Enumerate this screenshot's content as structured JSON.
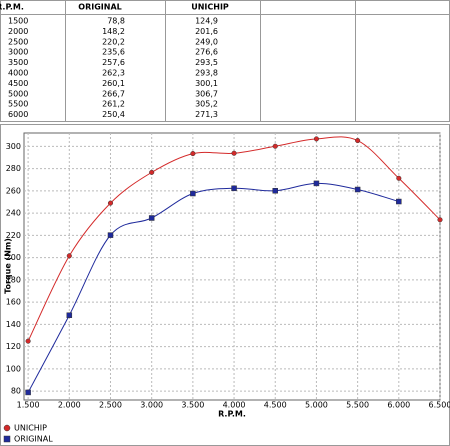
{
  "table": {
    "headers": [
      "R.P.M.",
      "ORIGINAL",
      "UNICHIP"
    ],
    "rows": [
      [
        "1500",
        "78,8",
        "124,9"
      ],
      [
        "2000",
        "148,2",
        "201,6"
      ],
      [
        "2500",
        "220,2",
        "249,0"
      ],
      [
        "3000",
        "235,6",
        "276,6"
      ],
      [
        "3500",
        "257,6",
        "293,5"
      ],
      [
        "4000",
        "262,3",
        "293,8"
      ],
      [
        "4500",
        "260,1",
        "300,1"
      ],
      [
        "5000",
        "266,7",
        "306,7"
      ],
      [
        "5500",
        "261,2",
        "305,2"
      ],
      [
        "6000",
        "250,4",
        "271,3"
      ]
    ]
  },
  "chart_data": {
    "type": "line",
    "x_label": "R.P.M.",
    "y_label": "Torque (Nm)",
    "x": [
      1500,
      2000,
      2500,
      3000,
      3500,
      4000,
      4500,
      5000,
      5500,
      6000,
      6500
    ],
    "series": [
      {
        "name": "UNICHIP",
        "color": "#d42a2a",
        "marker": "circle",
        "values": [
          124.9,
          201.6,
          249.0,
          276.6,
          293.5,
          293.8,
          300.1,
          306.7,
          305.2,
          271.3,
          234
        ]
      },
      {
        "name": "ORIGINAL",
        "color": "#1f2a9c",
        "marker": "square",
        "values": [
          78.8,
          148.2,
          220.2,
          235.6,
          257.6,
          262.3,
          260.1,
          266.7,
          261.2,
          250.4,
          null
        ]
      }
    ],
    "xlim": [
      1450,
      6500
    ],
    "ylim": [
      72,
      312
    ],
    "xticks": [
      {
        "value": 1500,
        "label": "1.500"
      },
      {
        "value": 2000,
        "label": "2.000"
      },
      {
        "value": 2500,
        "label": "2.500"
      },
      {
        "value": 3000,
        "label": "3.000"
      },
      {
        "value": 3500,
        "label": "3.500"
      },
      {
        "value": 4000,
        "label": "4.000"
      },
      {
        "value": 4500,
        "label": "4.500"
      },
      {
        "value": 5000,
        "label": "5.000"
      },
      {
        "value": 5500,
        "label": "5.500"
      },
      {
        "value": 6000,
        "label": "6.000"
      },
      {
        "value": 6500,
        "label": "6.500"
      }
    ],
    "yticks": [
      80,
      100,
      120,
      140,
      160,
      180,
      200,
      220,
      240,
      260,
      280,
      300
    ],
    "grid": true,
    "smooth": true
  }
}
